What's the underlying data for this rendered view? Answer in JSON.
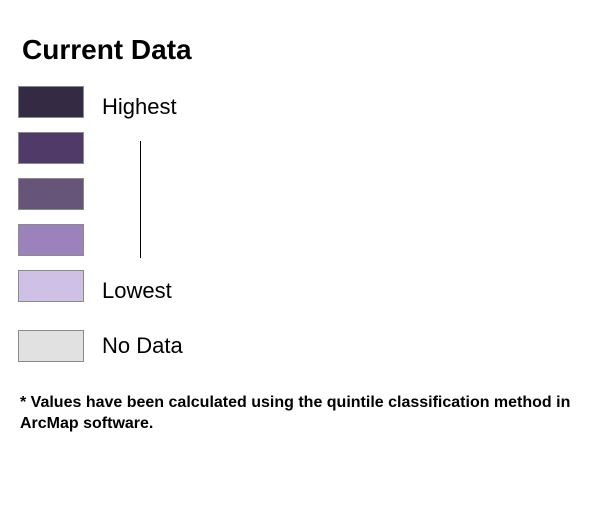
{
  "legend": {
    "title": "Current Data",
    "classes": [
      {
        "label": "Highest",
        "color": "#352a44"
      },
      {
        "label": "",
        "color": "#4f3a68"
      },
      {
        "label": "",
        "color": "#675479"
      },
      {
        "label": "",
        "color": "#9b82ba"
      },
      {
        "label": "Lowest",
        "color": "#cfc1e5"
      }
    ],
    "no_data": {
      "label": "No Data",
      "color": "#e1e1e1"
    },
    "footnote": "* Values have been calculated using the quintile classification method in ArcMap software."
  }
}
